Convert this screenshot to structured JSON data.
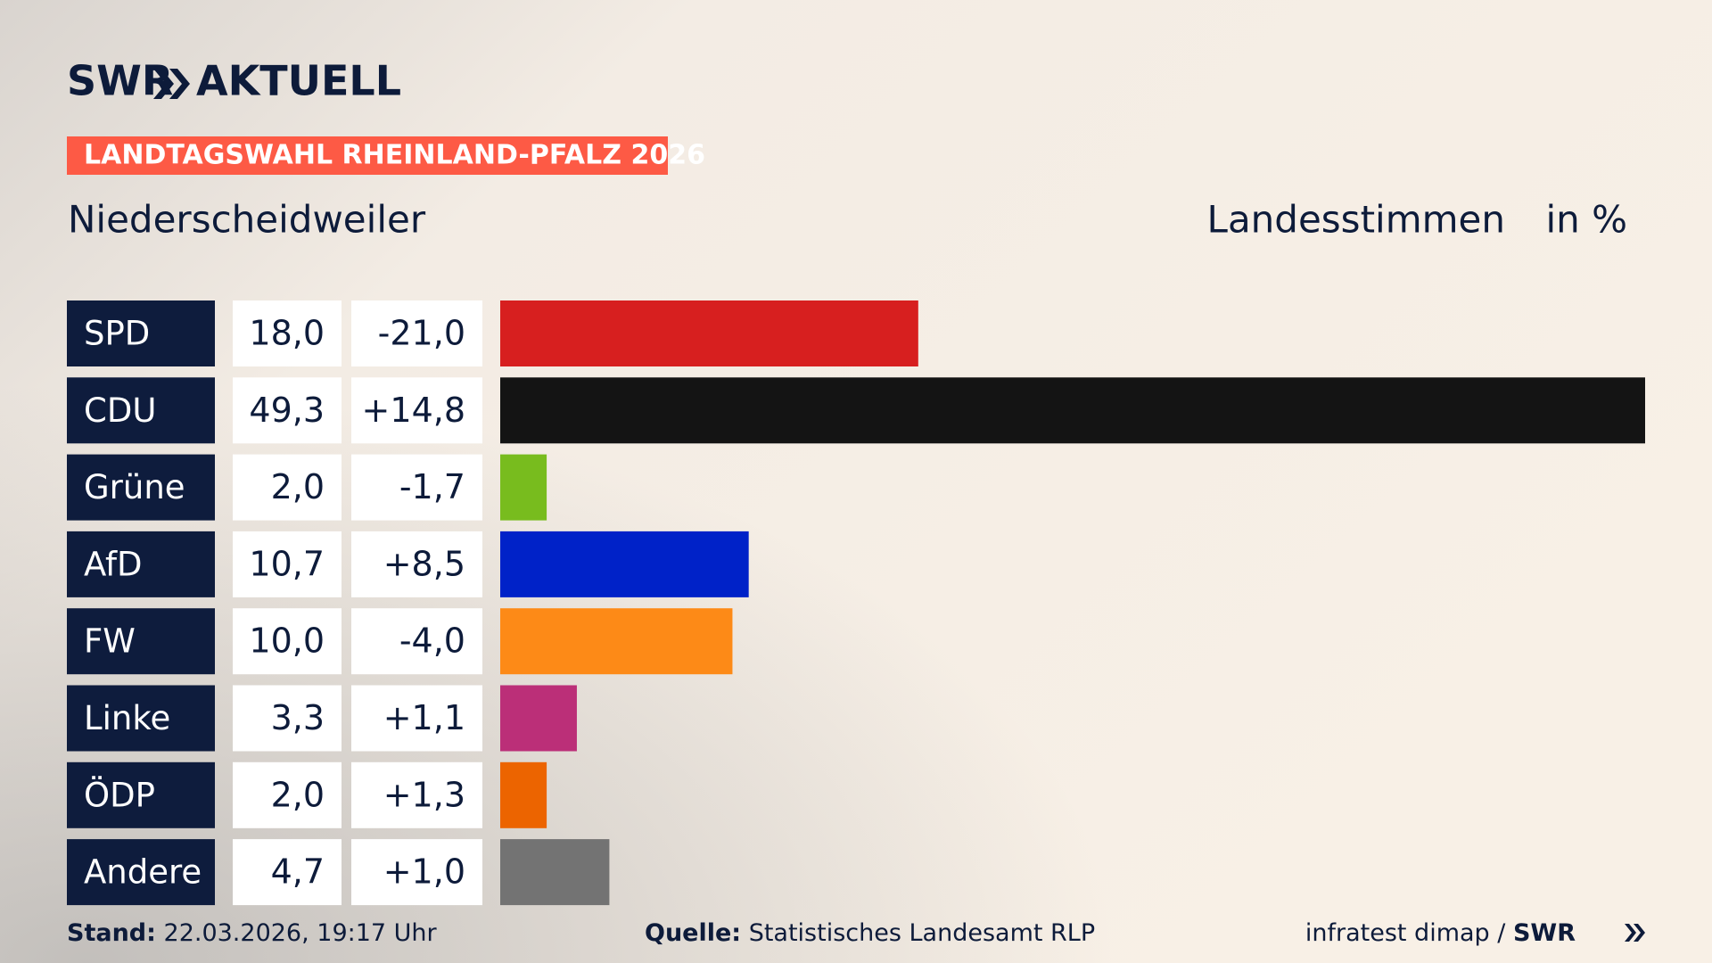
{
  "brand": {
    "name": "SWR",
    "section": "AKTUELL"
  },
  "banner": "LANDTAGSWAHL RHEINLAND-PFALZ 2026",
  "chart_data": {
    "type": "bar",
    "orientation": "horizontal",
    "title": "Niederscheidweiler",
    "measure": "Landesstimmen",
    "unit": "in %",
    "categories": [
      "SPD",
      "CDU",
      "Grüne",
      "AfD",
      "FW",
      "Linke",
      "ÖDP",
      "Andere"
    ],
    "values": [
      18.0,
      49.3,
      2.0,
      10.7,
      10.0,
      3.3,
      2.0,
      4.7
    ],
    "value_labels": [
      "18,0",
      "49,3",
      "2,0",
      "10,7",
      "10,0",
      "3,3",
      "2,0",
      "4,7"
    ],
    "changes": [
      "-21,0",
      "+14,8",
      "-1,7",
      "+8,5",
      "-4,0",
      "+1,1",
      "+1,3",
      "+1,0"
    ],
    "colors": [
      "#d71f1f",
      "#141414",
      "#78bc1e",
      "#0022c8",
      "#fd8a17",
      "#bb2f78",
      "#ec6400",
      "#737373"
    ]
  },
  "footer": {
    "stand_label": "Stand:",
    "stand": "22.03.2026, 19:17 Uhr",
    "source_label": "Quelle:",
    "source": "Statistisches Landesamt RLP",
    "credit": "infratest dimap /",
    "credit_brand": "SWR"
  }
}
